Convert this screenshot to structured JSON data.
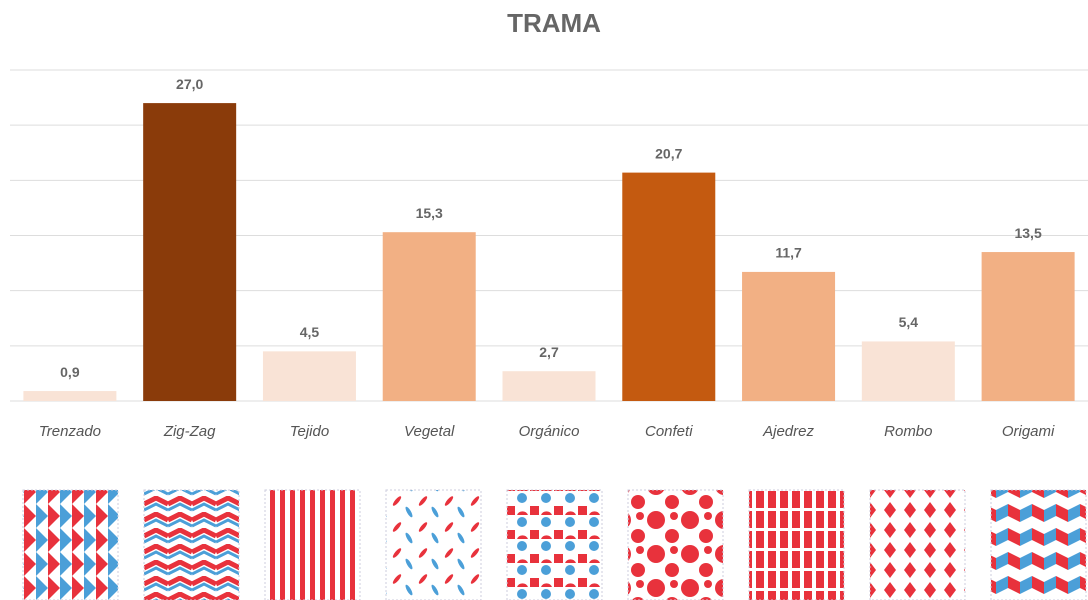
{
  "chart_data": {
    "type": "bar",
    "title": "TRAMA",
    "categories": [
      "Trenzado",
      "Zig-Zag",
      "Tejido",
      "Vegetal",
      "Orgánico",
      "Confeti",
      "Ajedrez",
      "Rombo",
      "Origami"
    ],
    "values": [
      0.9,
      27.0,
      4.5,
      15.3,
      2.7,
      20.7,
      11.7,
      5.4,
      13.5
    ],
    "value_labels": [
      "0,9",
      "27,0",
      "4,5",
      "15,3",
      "2,7",
      "20,7",
      "11,7",
      "5,4",
      "13,5"
    ],
    "colors": [
      "#f9e3d6",
      "#8a3b0a",
      "#f9e3d6",
      "#f2b084",
      "#f9e3d6",
      "#c45a10",
      "#f2b084",
      "#f9e3d6",
      "#f2b084"
    ],
    "ylim": [
      0,
      30
    ],
    "yticks": [
      0,
      5,
      10,
      15,
      20,
      25,
      30
    ],
    "grid": true
  }
}
